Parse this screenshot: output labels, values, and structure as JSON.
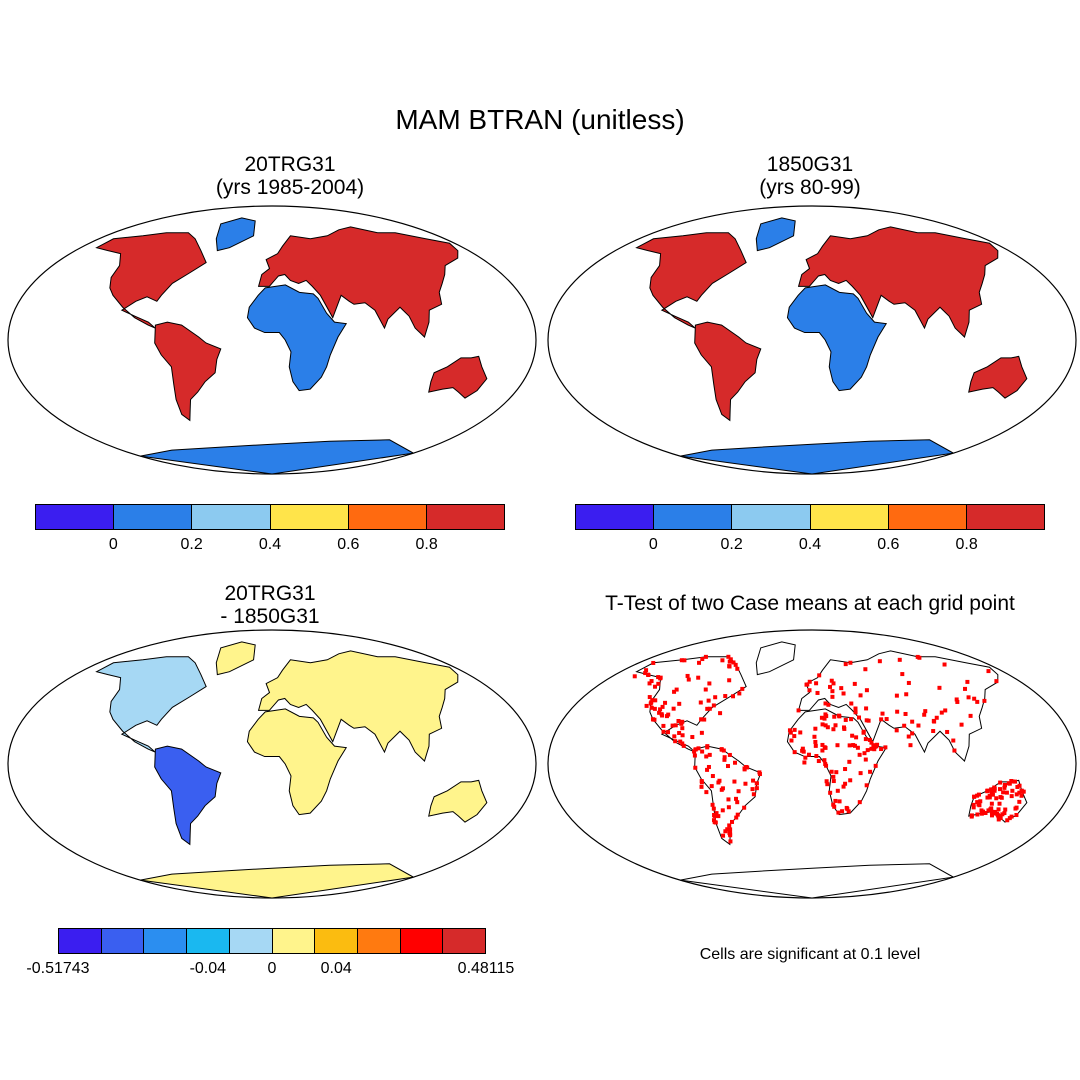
{
  "title": "MAM BTRAN (unitless)",
  "panels": [
    {
      "line1": "20TRG31",
      "line2": "(yrs 1985-2004)"
    },
    {
      "line1": "1850G31",
      "line2": "(yrs 80-99)"
    },
    {
      "line1": "20TRG31",
      "line2": "- 1850G31"
    },
    {
      "line1": "T-Test of two Case means at each grid point",
      "line2": ""
    }
  ],
  "colorbar_abs": {
    "colors": [
      "#3b1ef0",
      "#2b7fe8",
      "#8ccaf0",
      "#ffe44a",
      "#ff6a10",
      "#d62a2a"
    ],
    "labels": [
      "0",
      "0.2",
      "0.4",
      "0.6",
      "0.8"
    ]
  },
  "colorbar_diff": {
    "colors": [
      "#3b1ef0",
      "#3a5ff0",
      "#2b8ef0",
      "#1ab8f0",
      "#a6d8f4",
      "#fff48c",
      "#fbbc10",
      "#ff7a10",
      "#ff0000",
      "#d62a2a"
    ],
    "labels": [
      "-0.51743",
      "-0.04",
      "0",
      "0.04",
      "0.48115"
    ]
  },
  "significance_color": "#ff0000",
  "note": "Cells are significant at 0.1 level"
}
